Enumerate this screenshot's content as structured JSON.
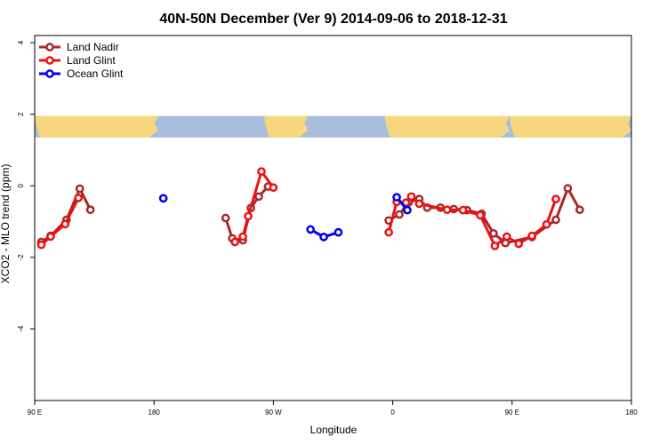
{
  "chart_data": {
    "type": "line",
    "title": "40N-50N December (Ver 9)   2014-09-06 to 2018-12-31",
    "xlabel": "Longitude",
    "ylabel": "XCO2 - MLO trend (ppm)",
    "xlim": [
      -180,
      180
    ],
    "ylim": [
      -6,
      4.2
    ],
    "x_ticks": [
      {
        "value": -180,
        "label": "90 E"
      },
      {
        "value": -90,
        "label": "180"
      },
      {
        "value": 0,
        "label": "90 W"
      },
      {
        "value": 90,
        "label": "0"
      },
      {
        "value": 180,
        "label": "90 E"
      },
      {
        "value": 270,
        "label": "180"
      }
    ],
    "x_domain": [
      -180,
      270
    ],
    "y_ticks": [
      {
        "value": 4,
        "label": "4"
      },
      {
        "value": 2,
        "label": "2"
      },
      {
        "value": 0,
        "label": "0"
      },
      {
        "value": -2,
        "label": "-2"
      },
      {
        "value": -4,
        "label": "-4"
      }
    ],
    "map_strip": {
      "y_top": 1.95,
      "y_bottom": 1.35,
      "ocean_color": "#a9bedd",
      "land_color": "#f7d77e"
    },
    "legend_position": "top-left",
    "series": [
      {
        "name": "Land Nadir",
        "color": "#a52a2a",
        "segments": [
          [
            [
              -175,
              -1.57
            ],
            [
              -168,
              -1.4
            ],
            [
              -156,
              -0.95
            ],
            [
              -146,
              -0.08
            ],
            [
              -138,
              -0.67
            ]
          ],
          [
            [
              -36,
              -0.9
            ],
            [
              -31,
              -1.47
            ],
            [
              -23,
              -1.52
            ],
            [
              -17,
              -0.62
            ],
            [
              -11,
              -0.3
            ],
            [
              -4,
              -0.02
            ]
          ],
          [
            [
              87,
              -0.97
            ],
            [
              95,
              -0.8
            ],
            [
              102,
              -0.46
            ],
            [
              110,
              -0.37
            ],
            [
              116,
              -0.61
            ],
            [
              126,
              -0.61
            ],
            [
              136,
              -0.65
            ],
            [
              146,
              -0.68
            ],
            [
              157,
              -0.78
            ],
            [
              166,
              -1.33
            ],
            [
              175,
              -1.6
            ],
            [
              195,
              -1.43
            ],
            [
              213,
              -0.95
            ],
            [
              222,
              -0.07
            ],
            [
              231,
              -0.67
            ]
          ]
        ]
      },
      {
        "name": "Land Glint",
        "color": "#ee1111",
        "segments": [
          [
            [
              -175,
              -1.65
            ],
            [
              -168,
              -1.42
            ],
            [
              -157,
              -1.07
            ],
            [
              -147,
              -0.34
            ]
          ],
          [
            [
              -29,
              -1.57
            ],
            [
              -23,
              -1.42
            ],
            [
              -19,
              -0.85
            ],
            [
              -9,
              0.4
            ],
            [
              0,
              -0.05
            ]
          ],
          [
            [
              87,
              -1.3
            ],
            [
              93,
              -0.45
            ],
            [
              100,
              -0.47
            ],
            [
              104,
              -0.3
            ],
            [
              110,
              -0.5
            ],
            [
              131,
              -0.67
            ],
            [
              143,
              -0.68
            ],
            [
              156,
              -0.82
            ],
            [
              167,
              -1.68
            ],
            [
              176,
              -1.42
            ],
            [
              185,
              -1.62
            ],
            [
              195,
              -1.4
            ],
            [
              206,
              -1.08
            ],
            [
              213,
              -0.37
            ]
          ]
        ]
      },
      {
        "name": "Ocean Glint",
        "color": "#0000ee",
        "segments": [
          [
            [
              -83,
              -0.35
            ]
          ],
          [
            [
              28,
              -1.22
            ],
            [
              38,
              -1.43
            ],
            [
              49,
              -1.3
            ]
          ],
          [
            [
              93,
              -0.32
            ],
            [
              101,
              -0.68
            ]
          ]
        ]
      }
    ]
  }
}
